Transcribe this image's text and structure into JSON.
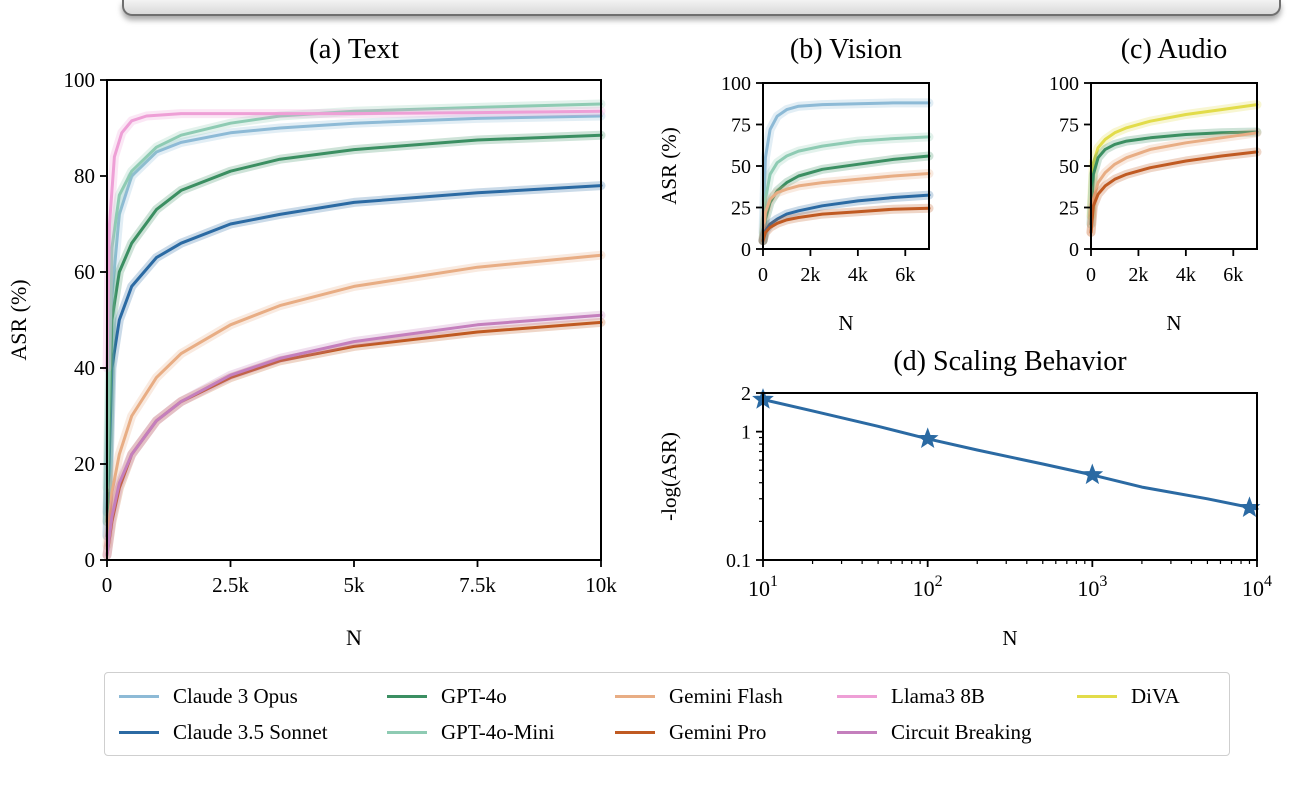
{
  "colors": {
    "Claude 3 Opus": "#8dbad6",
    "Claude 3.5 Sonnet": "#2b6aa3",
    "GPT-4o": "#3b8f62",
    "GPT-4o-Mini": "#8ecbb3",
    "Gemini Flash": "#e8ad84",
    "Gemini Pro": "#c05a22",
    "Llama3 8B": "#ee9fd6",
    "Circuit Breaking": "#c47fbd",
    "DiVA": "#e2dc4a"
  },
  "legend": [
    "Claude 3 Opus",
    "Claude 3.5 Sonnet",
    "GPT-4o",
    "GPT-4o-Mini",
    "Gemini Flash",
    "Gemini Pro",
    "Llama3 8B",
    "Circuit Breaking",
    "DiVA"
  ],
  "chart_data": [
    {
      "id": "text",
      "type": "line",
      "title": "(a) Text",
      "xlabel": "N",
      "ylabel": "ASR (%)",
      "xlim": [
        0,
        10000
      ],
      "ylim": [
        0,
        100
      ],
      "xticks": [
        0,
        2500,
        5000,
        7500,
        10000
      ],
      "xtick_labels": [
        "0",
        "2.5k",
        "5k",
        "7.5k",
        "10k"
      ],
      "yticks": [
        0,
        20,
        40,
        60,
        80,
        100
      ],
      "ytick_labels": [
        "0",
        "20",
        "40",
        "60",
        "80",
        "100"
      ],
      "series": [
        {
          "name": "Claude 3 Opus",
          "x": [
            0,
            100,
            250,
            500,
            1000,
            1500,
            2500,
            3500,
            5000,
            7500,
            10000
          ],
          "y": [
            10,
            55,
            72,
            80,
            85,
            87,
            89,
            90,
            91,
            92,
            92.5
          ]
        },
        {
          "name": "Claude 3.5 Sonnet",
          "x": [
            0,
            100,
            250,
            500,
            1000,
            1500,
            2500,
            3500,
            5000,
            7500,
            10000
          ],
          "y": [
            5,
            40,
            50,
            57,
            63,
            66,
            70,
            72,
            74.5,
            76.5,
            78
          ]
        },
        {
          "name": "GPT-4o",
          "x": [
            0,
            100,
            250,
            500,
            1000,
            1500,
            2500,
            3500,
            5000,
            7500,
            10000
          ],
          "y": [
            8,
            50,
            60,
            66,
            73,
            77,
            81,
            83.5,
            85.5,
            87.5,
            88.5
          ]
        },
        {
          "name": "GPT-4o-Mini",
          "x": [
            0,
            100,
            250,
            500,
            1000,
            1500,
            2500,
            3500,
            5000,
            7500,
            10000
          ],
          "y": [
            15,
            65,
            76,
            81,
            86,
            88.5,
            91,
            92.5,
            93.5,
            94.3,
            95
          ]
        },
        {
          "name": "Gemini Flash",
          "x": [
            0,
            100,
            250,
            500,
            1000,
            1500,
            2500,
            3500,
            5000,
            7500,
            10000
          ],
          "y": [
            3,
            14,
            22,
            30,
            38,
            43,
            49,
            53,
            57,
            61,
            63.5
          ]
        },
        {
          "name": "Gemini Pro",
          "x": [
            0,
            100,
            250,
            500,
            1000,
            1500,
            2500,
            3500,
            5000,
            7500,
            10000
          ],
          "y": [
            1,
            8,
            15,
            22,
            29,
            33,
            38,
            41.5,
            44.5,
            47.5,
            49.5
          ]
        },
        {
          "name": "Llama3 8B",
          "x": [
            0,
            50,
            150,
            300,
            500,
            800,
            1500,
            3000,
            5000,
            7500,
            10000
          ],
          "y": [
            40,
            70,
            84,
            89,
            91.5,
            92.5,
            93,
            93,
            93,
            93.2,
            93.5
          ]
        },
        {
          "name": "Circuit Breaking",
          "x": [
            0,
            100,
            250,
            500,
            1000,
            1500,
            2500,
            3500,
            5000,
            7500,
            10000
          ],
          "y": [
            1,
            9,
            16,
            22,
            29,
            33,
            38.5,
            42,
            45.5,
            49,
            51
          ]
        }
      ]
    },
    {
      "id": "vision",
      "type": "line",
      "title": "(b) Vision",
      "xlabel": "N",
      "ylabel": "ASR (%)",
      "xlim": [
        0,
        7000
      ],
      "ylim": [
        0,
        100
      ],
      "xticks": [
        0,
        2000,
        4000,
        6000
      ],
      "xtick_labels": [
        "0",
        "2k",
        "4k",
        "6k"
      ],
      "yticks": [
        0,
        25,
        50,
        75,
        100
      ],
      "ytick_labels": [
        "0",
        "25",
        "50",
        "75",
        "100"
      ],
      "series": [
        {
          "name": "Claude 3 Opus",
          "x": [
            0,
            100,
            300,
            600,
            1000,
            1500,
            2500,
            4000,
            5500,
            7000
          ],
          "y": [
            10,
            55,
            72,
            80,
            84,
            86,
            87,
            87.5,
            88,
            88
          ]
        },
        {
          "name": "GPT-4o-Mini",
          "x": [
            0,
            100,
            300,
            600,
            1000,
            1500,
            2500,
            4000,
            5500,
            7000
          ],
          "y": [
            5,
            30,
            45,
            52,
            56,
            59,
            62,
            65,
            66.5,
            67.5
          ]
        },
        {
          "name": "GPT-4o",
          "x": [
            0,
            100,
            300,
            600,
            1000,
            1500,
            2500,
            4000,
            5500,
            7000
          ],
          "y": [
            5,
            18,
            28,
            35,
            40,
            44,
            48,
            51,
            54,
            56
          ]
        },
        {
          "name": "Gemini Flash",
          "x": [
            0,
            100,
            300,
            600,
            1000,
            1500,
            2500,
            4000,
            5500,
            7000
          ],
          "y": [
            5,
            22,
            30,
            34,
            36,
            38,
            40,
            42,
            44,
            45.5
          ]
        },
        {
          "name": "Claude 3.5 Sonnet",
          "x": [
            0,
            100,
            300,
            600,
            1000,
            1500,
            2500,
            4000,
            5500,
            7000
          ],
          "y": [
            5,
            11,
            15,
            18,
            21,
            23,
            26,
            29,
            31,
            32.5
          ]
        },
        {
          "name": "Gemini Pro",
          "x": [
            0,
            100,
            300,
            600,
            1000,
            1500,
            2500,
            4000,
            5500,
            7000
          ],
          "y": [
            5,
            10,
            13,
            15.5,
            17.5,
            19,
            21,
            22.5,
            24,
            24.5
          ]
        }
      ]
    },
    {
      "id": "audio",
      "type": "line",
      "title": "(c) Audio",
      "xlabel": "N",
      "ylabel": "",
      "xlim": [
        0,
        7000
      ],
      "ylim": [
        0,
        100
      ],
      "xticks": [
        0,
        2000,
        4000,
        6000
      ],
      "xtick_labels": [
        "0",
        "2k",
        "4k",
        "6k"
      ],
      "yticks": [
        0,
        25,
        50,
        75,
        100
      ],
      "ytick_labels": [
        "0",
        "25",
        "50",
        "75",
        "100"
      ],
      "series": [
        {
          "name": "DiVA",
          "x": [
            0,
            100,
            300,
            600,
            1000,
            1500,
            2500,
            4000,
            5500,
            7000
          ],
          "y": [
            20,
            52,
            61,
            66,
            70,
            73,
            77,
            81,
            84,
            87
          ]
        },
        {
          "name": "GPT-4o",
          "x": [
            0,
            100,
            300,
            600,
            1000,
            1500,
            2500,
            4000,
            5500,
            7000
          ],
          "y": [
            15,
            45,
            55,
            60,
            63,
            65,
            67,
            69,
            70,
            70.5
          ]
        },
        {
          "name": "Gemini Flash",
          "x": [
            0,
            100,
            300,
            600,
            1000,
            1500,
            2500,
            4000,
            5500,
            7000
          ],
          "y": [
            10,
            30,
            40,
            46,
            51,
            55,
            60,
            64,
            67,
            70
          ]
        },
        {
          "name": "Gemini Pro",
          "x": [
            0,
            100,
            300,
            600,
            1000,
            1500,
            2500,
            4000,
            5500,
            7000
          ],
          "y": [
            10,
            26,
            33,
            38,
            42,
            45,
            49,
            53,
            56,
            58.5
          ]
        }
      ]
    },
    {
      "id": "scaling",
      "type": "line",
      "title": "(d) Scaling Behavior",
      "xlabel": "N",
      "ylabel": "-log(ASR)",
      "xscale": "log",
      "yscale": "log",
      "xlim": [
        10,
        10000
      ],
      "ylim": [
        0.1,
        2
      ],
      "xticks": [
        10,
        100,
        1000,
        10000
      ],
      "xtick_labels": [
        [
          "10",
          "1"
        ],
        [
          "10",
          "2"
        ],
        [
          "10",
          "3"
        ],
        [
          "10",
          "4"
        ]
      ],
      "yticks": [
        0.1,
        1,
        2
      ],
      "ytick_labels": [
        "0.1",
        "1",
        "2"
      ],
      "series": [
        {
          "name": "Claude 3.5 Sonnet",
          "x": [
            10,
            20,
            50,
            100,
            200,
            500,
            1000,
            2000,
            5000,
            10000
          ],
          "y": [
            1.78,
            1.45,
            1.1,
            0.88,
            0.72,
            0.56,
            0.46,
            0.37,
            0.3,
            0.25
          ]
        }
      ],
      "markers": {
        "x": [
          10,
          100,
          1000,
          9000
        ],
        "y": [
          1.78,
          0.88,
          0.46,
          0.255
        ]
      }
    }
  ]
}
